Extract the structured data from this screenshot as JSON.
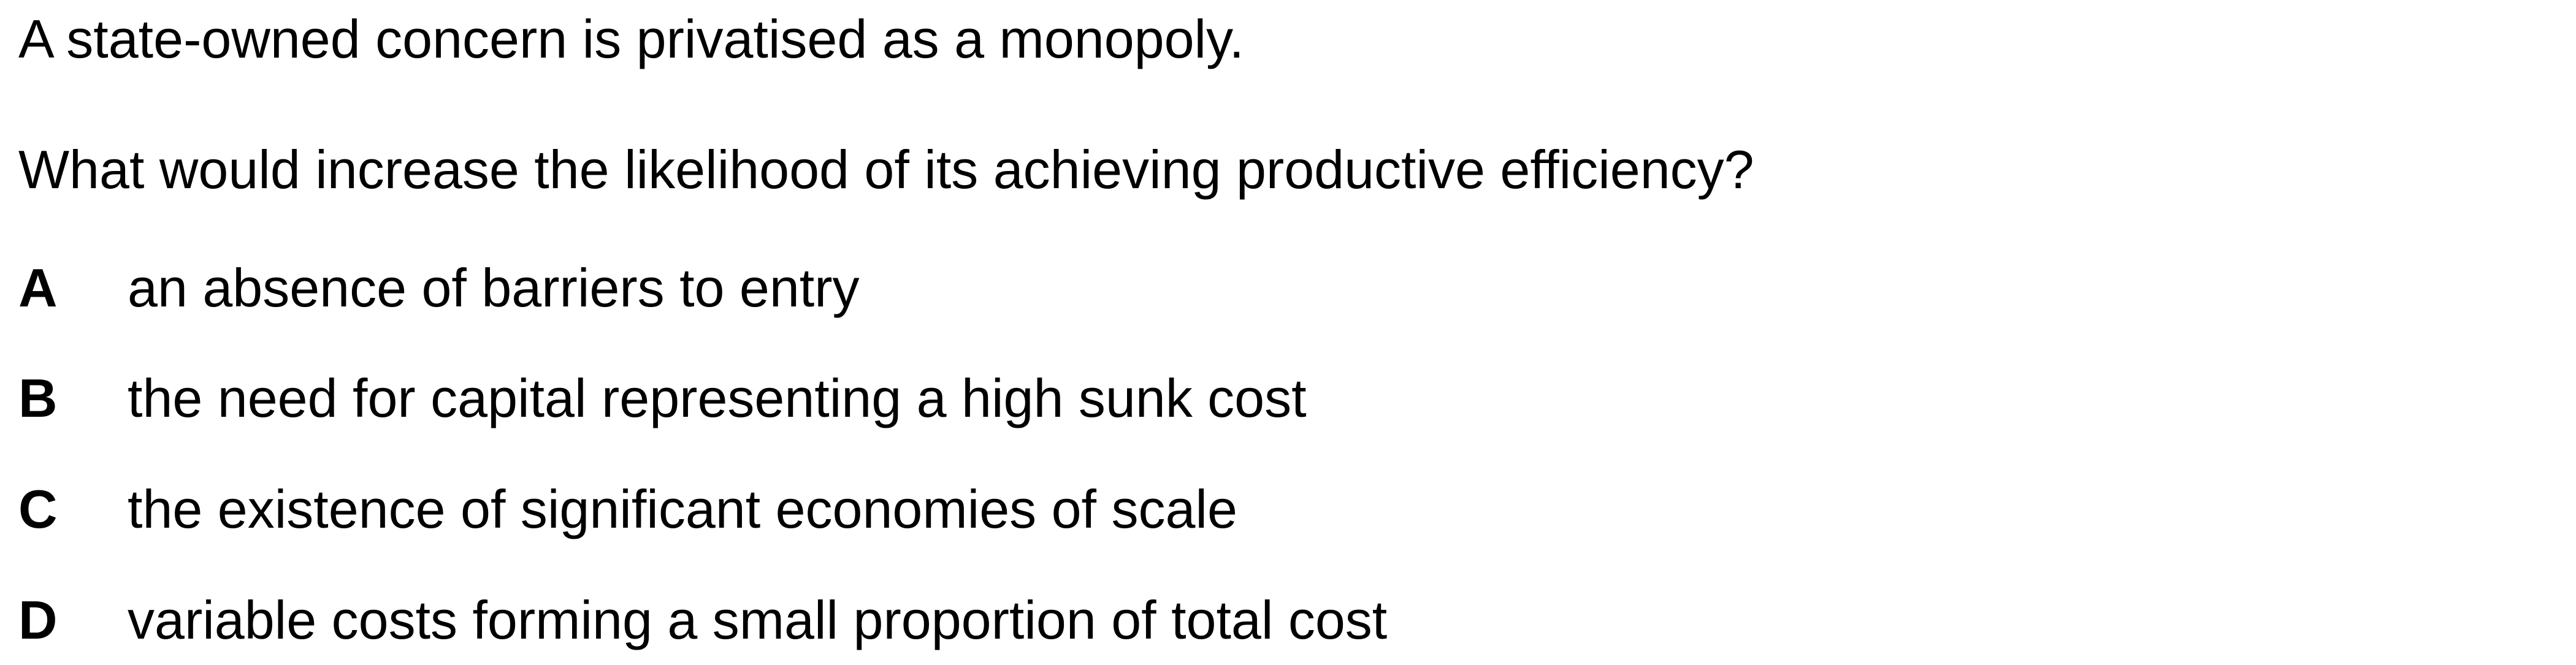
{
  "question": {
    "stem": [
      "A state-owned concern is privatised as a monopoly.",
      "What would increase the likelihood of its achieving productive efficiency?"
    ],
    "options": [
      {
        "letter": "A",
        "text": "an absence of barriers to entry"
      },
      {
        "letter": "B",
        "text": "the need for capital representing a high sunk cost"
      },
      {
        "letter": "C",
        "text": "the existence of significant economies of scale"
      },
      {
        "letter": "D",
        "text": "variable costs forming a small proportion of total cost"
      }
    ]
  }
}
